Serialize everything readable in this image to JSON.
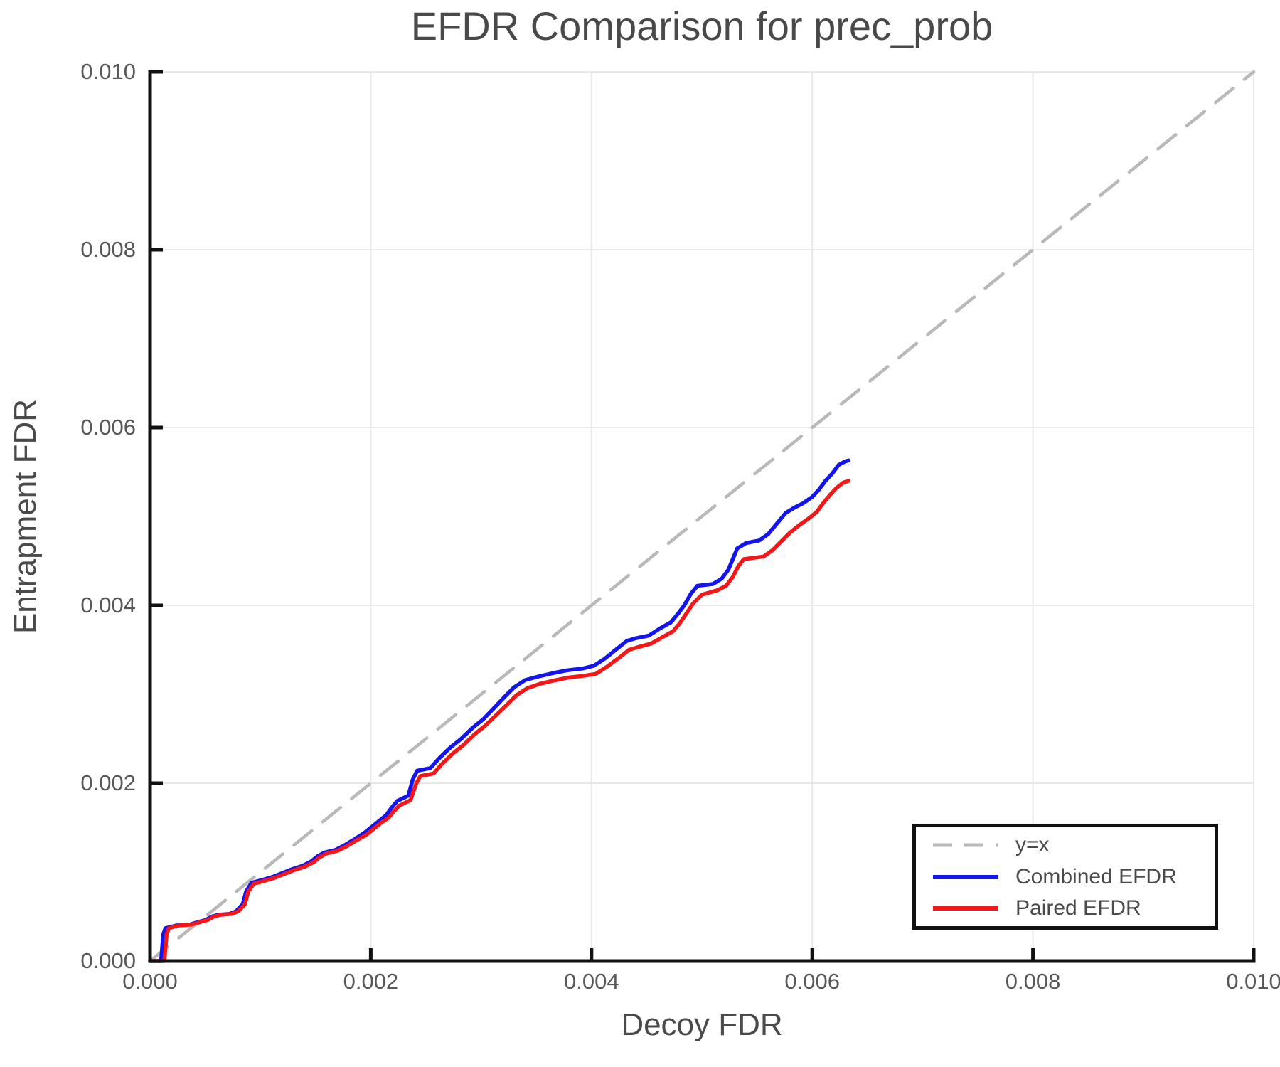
{
  "chart_data": {
    "type": "line",
    "title": "EFDR Comparison for prec_prob",
    "xlabel": "Decoy FDR",
    "ylabel": "Entrapment FDR",
    "xlim": [
      0.0,
      0.01
    ],
    "ylim": [
      0.0,
      0.01
    ],
    "grid": true,
    "legend_position": "lower right",
    "x_ticks": {
      "values": [
        0.0,
        0.002,
        0.004,
        0.006,
        0.008,
        0.01
      ],
      "labels": [
        "0.000",
        "0.002",
        "0.004",
        "0.006",
        "0.008",
        "0.010"
      ]
    },
    "y_ticks": {
      "values": [
        0.0,
        0.002,
        0.004,
        0.006,
        0.008,
        0.01
      ],
      "labels": [
        "0.000",
        "0.002",
        "0.004",
        "0.006",
        "0.008",
        "0.010"
      ]
    },
    "series": [
      {
        "name": "y=x",
        "color": "#b9b9b9",
        "style": "dashed",
        "points": [
          [
            0.0,
            0.0
          ],
          [
            0.01,
            0.01
          ]
        ]
      },
      {
        "name": "Combined EFDR",
        "color": "#1414f0",
        "style": "solid",
        "points": [
          [
            0.0,
            0.0
          ],
          [
            0.0001,
            0.0
          ],
          [
            0.00012,
            0.0003
          ],
          [
            0.00014,
            0.00037
          ],
          [
            0.00024,
            0.0004
          ],
          [
            0.00036,
            0.00041
          ],
          [
            0.00044,
            0.00044
          ],
          [
            0.0005,
            0.00046
          ],
          [
            0.00056,
            0.0005
          ],
          [
            0.00062,
            0.00052
          ],
          [
            0.00072,
            0.00053
          ],
          [
            0.00078,
            0.00056
          ],
          [
            0.00084,
            0.00064
          ],
          [
            0.00087,
            0.00078
          ],
          [
            0.00092,
            0.00088
          ],
          [
            0.00104,
            0.00092
          ],
          [
            0.00112,
            0.00095
          ],
          [
            0.0012,
            0.00099
          ],
          [
            0.00128,
            0.00103
          ],
          [
            0.00138,
            0.00107
          ],
          [
            0.00146,
            0.00112
          ],
          [
            0.00152,
            0.00118
          ],
          [
            0.00158,
            0.00122
          ],
          [
            0.00168,
            0.00125
          ],
          [
            0.00176,
            0.0013
          ],
          [
            0.00184,
            0.00136
          ],
          [
            0.00194,
            0.00144
          ],
          [
            0.00202,
            0.00152
          ],
          [
            0.00208,
            0.00158
          ],
          [
            0.00214,
            0.00164
          ],
          [
            0.00218,
            0.00171
          ],
          [
            0.00224,
            0.0018
          ],
          [
            0.00234,
            0.00186
          ],
          [
            0.00238,
            0.00204
          ],
          [
            0.00242,
            0.00214
          ],
          [
            0.00254,
            0.00217
          ],
          [
            0.00262,
            0.00228
          ],
          [
            0.00272,
            0.0024
          ],
          [
            0.00282,
            0.0025
          ],
          [
            0.00292,
            0.00262
          ],
          [
            0.00302,
            0.00272
          ],
          [
            0.00312,
            0.00285
          ],
          [
            0.00322,
            0.00298
          ],
          [
            0.0033,
            0.00308
          ],
          [
            0.0034,
            0.00316
          ],
          [
            0.00352,
            0.0032
          ],
          [
            0.00366,
            0.00324
          ],
          [
            0.00378,
            0.00327
          ],
          [
            0.00392,
            0.00329
          ],
          [
            0.00402,
            0.00332
          ],
          [
            0.00412,
            0.0034
          ],
          [
            0.00424,
            0.00352
          ],
          [
            0.00432,
            0.0036
          ],
          [
            0.0044,
            0.00363
          ],
          [
            0.00452,
            0.00366
          ],
          [
            0.00462,
            0.00374
          ],
          [
            0.00472,
            0.00381
          ],
          [
            0.00478,
            0.0039
          ],
          [
            0.00484,
            0.004
          ],
          [
            0.0049,
            0.00413
          ],
          [
            0.00496,
            0.00422
          ],
          [
            0.0051,
            0.00424
          ],
          [
            0.00518,
            0.0043
          ],
          [
            0.00524,
            0.0044
          ],
          [
            0.00528,
            0.00452
          ],
          [
            0.00532,
            0.00464
          ],
          [
            0.0054,
            0.0047
          ],
          [
            0.00552,
            0.00473
          ],
          [
            0.0056,
            0.0048
          ],
          [
            0.00568,
            0.00492
          ],
          [
            0.00576,
            0.00504
          ],
          [
            0.00584,
            0.0051
          ],
          [
            0.00592,
            0.00515
          ],
          [
            0.006,
            0.00522
          ],
          [
            0.00606,
            0.0053
          ],
          [
            0.00612,
            0.0054
          ],
          [
            0.00618,
            0.00548
          ],
          [
            0.00624,
            0.00558
          ],
          [
            0.0063,
            0.00562
          ],
          [
            0.00633,
            0.00563
          ]
        ]
      },
      {
        "name": "Paired EFDR",
        "color": "#f51717",
        "style": "solid",
        "points": [
          [
            0.0,
            0.0
          ],
          [
            0.00013,
            0.0
          ],
          [
            0.00015,
            0.0003
          ],
          [
            0.00017,
            0.00037
          ],
          [
            0.00026,
            0.0004
          ],
          [
            0.00038,
            0.00041
          ],
          [
            0.00046,
            0.00044
          ],
          [
            0.00052,
            0.00046
          ],
          [
            0.00058,
            0.0005
          ],
          [
            0.00064,
            0.00052
          ],
          [
            0.00074,
            0.00053
          ],
          [
            0.0008,
            0.00056
          ],
          [
            0.00086,
            0.00064
          ],
          [
            0.00089,
            0.00078
          ],
          [
            0.00094,
            0.00087
          ],
          [
            0.00106,
            0.00091
          ],
          [
            0.00114,
            0.00094
          ],
          [
            0.00122,
            0.00098
          ],
          [
            0.0013,
            0.00102
          ],
          [
            0.0014,
            0.00106
          ],
          [
            0.00148,
            0.00111
          ],
          [
            0.00154,
            0.00117
          ],
          [
            0.0016,
            0.00121
          ],
          [
            0.0017,
            0.00124
          ],
          [
            0.00178,
            0.00129
          ],
          [
            0.00186,
            0.00135
          ],
          [
            0.00196,
            0.00142
          ],
          [
            0.00204,
            0.0015
          ],
          [
            0.0021,
            0.00156
          ],
          [
            0.00216,
            0.00161
          ],
          [
            0.0022,
            0.00167
          ],
          [
            0.00226,
            0.00175
          ],
          [
            0.00236,
            0.00181
          ],
          [
            0.00241,
            0.00199
          ],
          [
            0.00245,
            0.00208
          ],
          [
            0.00257,
            0.00211
          ],
          [
            0.00264,
            0.00221
          ],
          [
            0.00274,
            0.00233
          ],
          [
            0.00284,
            0.00243
          ],
          [
            0.00294,
            0.00255
          ],
          [
            0.00304,
            0.00265
          ],
          [
            0.00314,
            0.00277
          ],
          [
            0.00324,
            0.00289
          ],
          [
            0.00332,
            0.00299
          ],
          [
            0.00342,
            0.00307
          ],
          [
            0.00354,
            0.00312
          ],
          [
            0.00368,
            0.00316
          ],
          [
            0.0038,
            0.00319
          ],
          [
            0.00394,
            0.00321
          ],
          [
            0.00404,
            0.00323
          ],
          [
            0.00414,
            0.00331
          ],
          [
            0.00426,
            0.00342
          ],
          [
            0.00434,
            0.0035
          ],
          [
            0.00442,
            0.00353
          ],
          [
            0.00454,
            0.00357
          ],
          [
            0.00464,
            0.00364
          ],
          [
            0.00474,
            0.00371
          ],
          [
            0.0048,
            0.0038
          ],
          [
            0.00486,
            0.00391
          ],
          [
            0.00492,
            0.00402
          ],
          [
            0.005,
            0.00412
          ],
          [
            0.00514,
            0.00417
          ],
          [
            0.00522,
            0.00422
          ],
          [
            0.00528,
            0.00432
          ],
          [
            0.00533,
            0.00444
          ],
          [
            0.00538,
            0.00452
          ],
          [
            0.00556,
            0.00455
          ],
          [
            0.00564,
            0.00462
          ],
          [
            0.00572,
            0.00472
          ],
          [
            0.0058,
            0.00482
          ],
          [
            0.00588,
            0.0049
          ],
          [
            0.00596,
            0.00497
          ],
          [
            0.00604,
            0.00505
          ],
          [
            0.0061,
            0.00515
          ],
          [
            0.00616,
            0.00524
          ],
          [
            0.00622,
            0.00532
          ],
          [
            0.00628,
            0.00538
          ],
          [
            0.00633,
            0.0054
          ]
        ]
      }
    ]
  }
}
